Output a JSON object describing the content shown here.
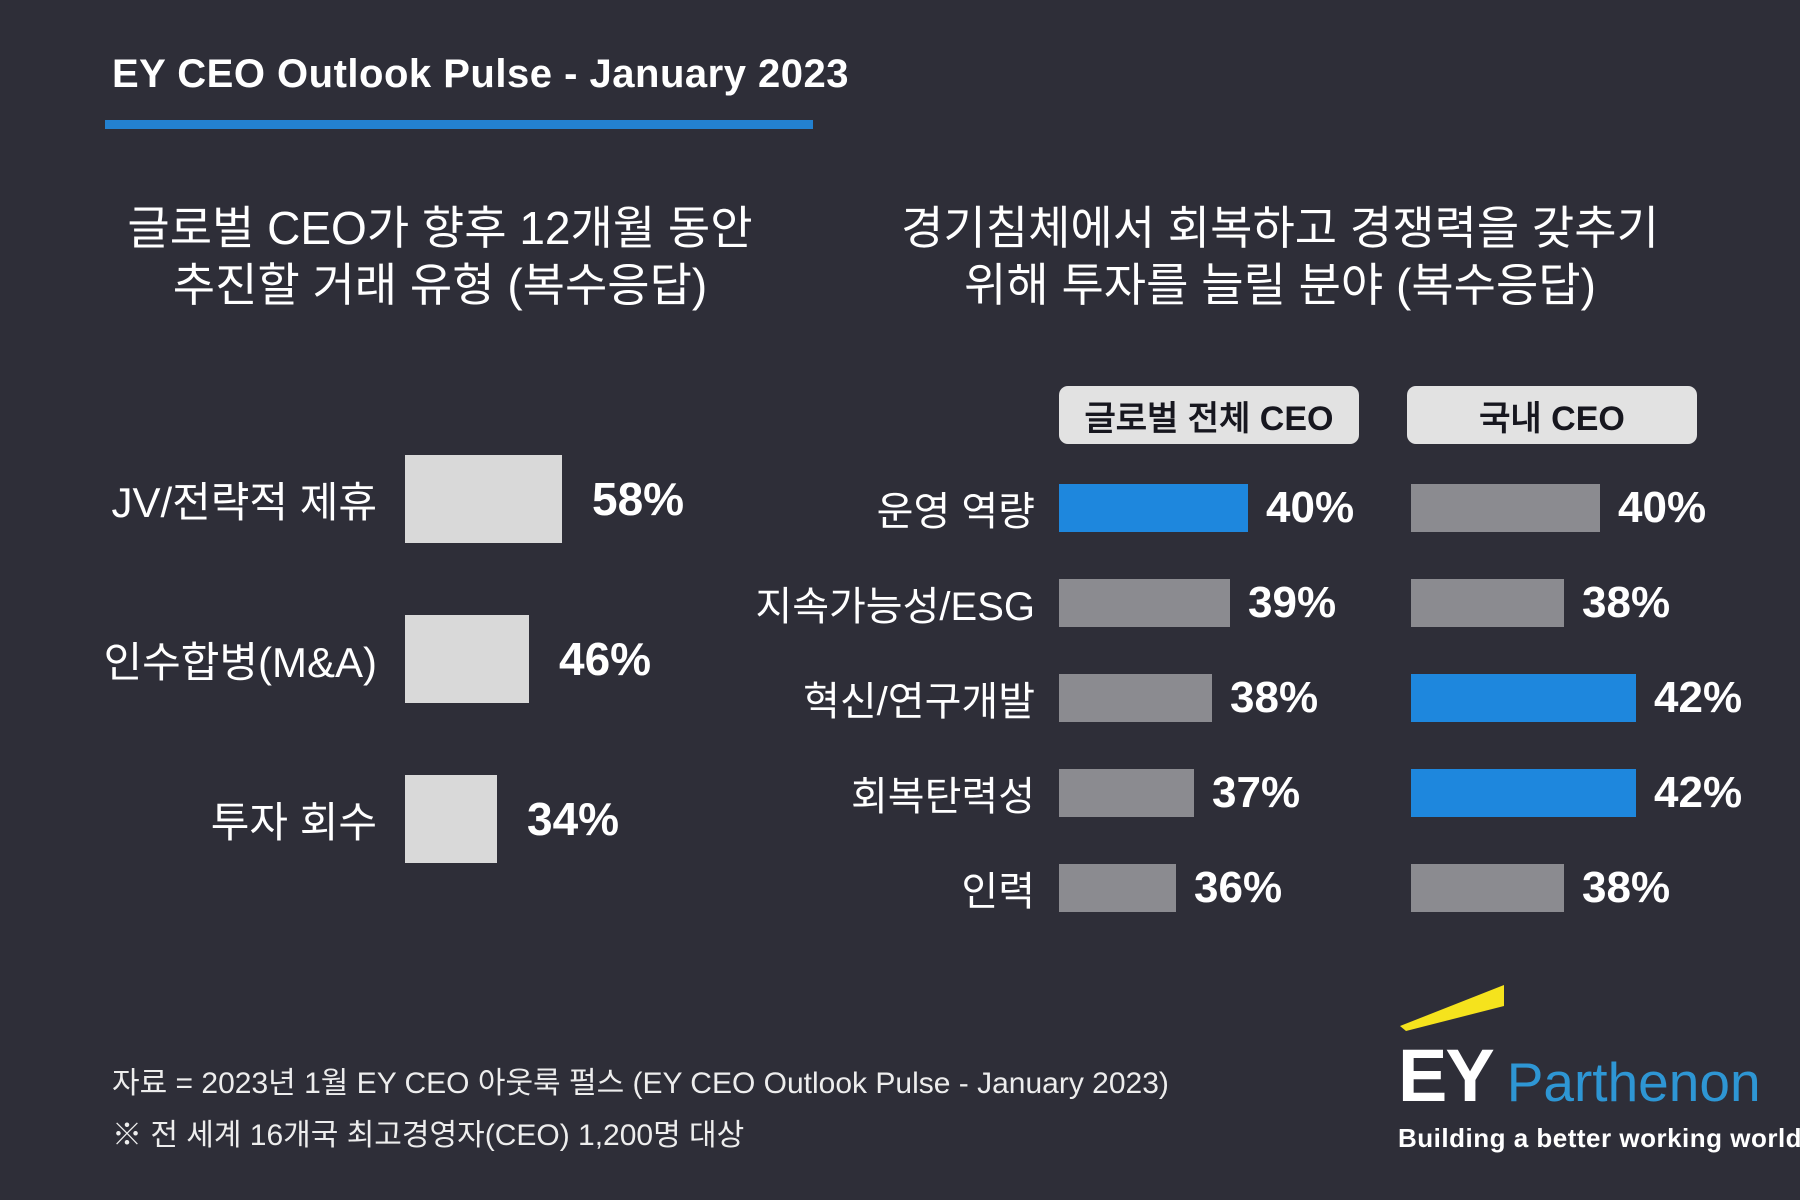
{
  "header": {
    "title": "EY CEO Outlook Pulse - January 2023"
  },
  "colors": {
    "background": "#2e2e38",
    "accent_blue": "#1e87dd",
    "underline_blue": "#2381d0",
    "bar_gray": "#8b8b90",
    "bar_light_gray": "#d9d9d9",
    "pill_background": "#e2e2e2",
    "ey_yellow": "#f5e31d",
    "parthenon_blue": "#2e96d4"
  },
  "chart_data": [
    {
      "type": "bar",
      "orientation": "horizontal",
      "title": "글로벌 CEO가 향후 12개월 동안 추진할 거래 유형 (복수응답)",
      "title_lines": [
        "글로벌 CEO가 향후 12개월 동안",
        "추진할 거래 유형 (복수응답)"
      ],
      "categories": [
        "JV/전략적 제휴",
        "인수합병(M&A)",
        "투자 회수"
      ],
      "values": [
        58,
        46,
        34
      ],
      "value_labels": [
        "58%",
        "46%",
        "34%"
      ],
      "bar_color": "#d9d9d9",
      "xlim": [
        0,
        100
      ],
      "grid": false,
      "legend": "none"
    },
    {
      "type": "bar",
      "orientation": "horizontal",
      "title": "경기침체에서 회복하고 경쟁력을 갖추기 위해 투자를 늘릴 분야 (복수응답)",
      "title_lines": [
        "경기침체에서 회복하고 경쟁력을 갖추기",
        "위해 투자를 늘릴 분야 (복수응답)"
      ],
      "categories": [
        "운영 역량",
        "지속가능성/ESG",
        "혁신/연구개발",
        "회복탄력성",
        "인력"
      ],
      "series": [
        {
          "name": "글로벌 전체 CEO",
          "values": [
            40,
            39,
            38,
            37,
            36
          ],
          "value_labels": [
            "40%",
            "39%",
            "38%",
            "37%",
            "36%"
          ],
          "highlight": [
            true,
            false,
            false,
            false,
            false
          ]
        },
        {
          "name": "국내 CEO",
          "values": [
            40,
            38,
            42,
            42,
            38
          ],
          "value_labels": [
            "40%",
            "38%",
            "42%",
            "42%",
            "38%"
          ],
          "highlight": [
            false,
            false,
            true,
            true,
            false
          ]
        }
      ],
      "highlight_color": "#1e87dd",
      "bar_color": "#8b8b90",
      "grid": false,
      "legend": "column-headers-top"
    }
  ],
  "footer": {
    "source_line1": "자료 = 2023년 1월 EY CEO 아웃룩 펄스 (EY CEO Outlook Pulse - January 2023)",
    "source_line2": "※ 전 세계 16개국 최고경영자(CEO) 1,200명 대상"
  },
  "logo": {
    "ey": "EY",
    "parthenon": "Parthenon",
    "tagline": "Building a better working world"
  }
}
